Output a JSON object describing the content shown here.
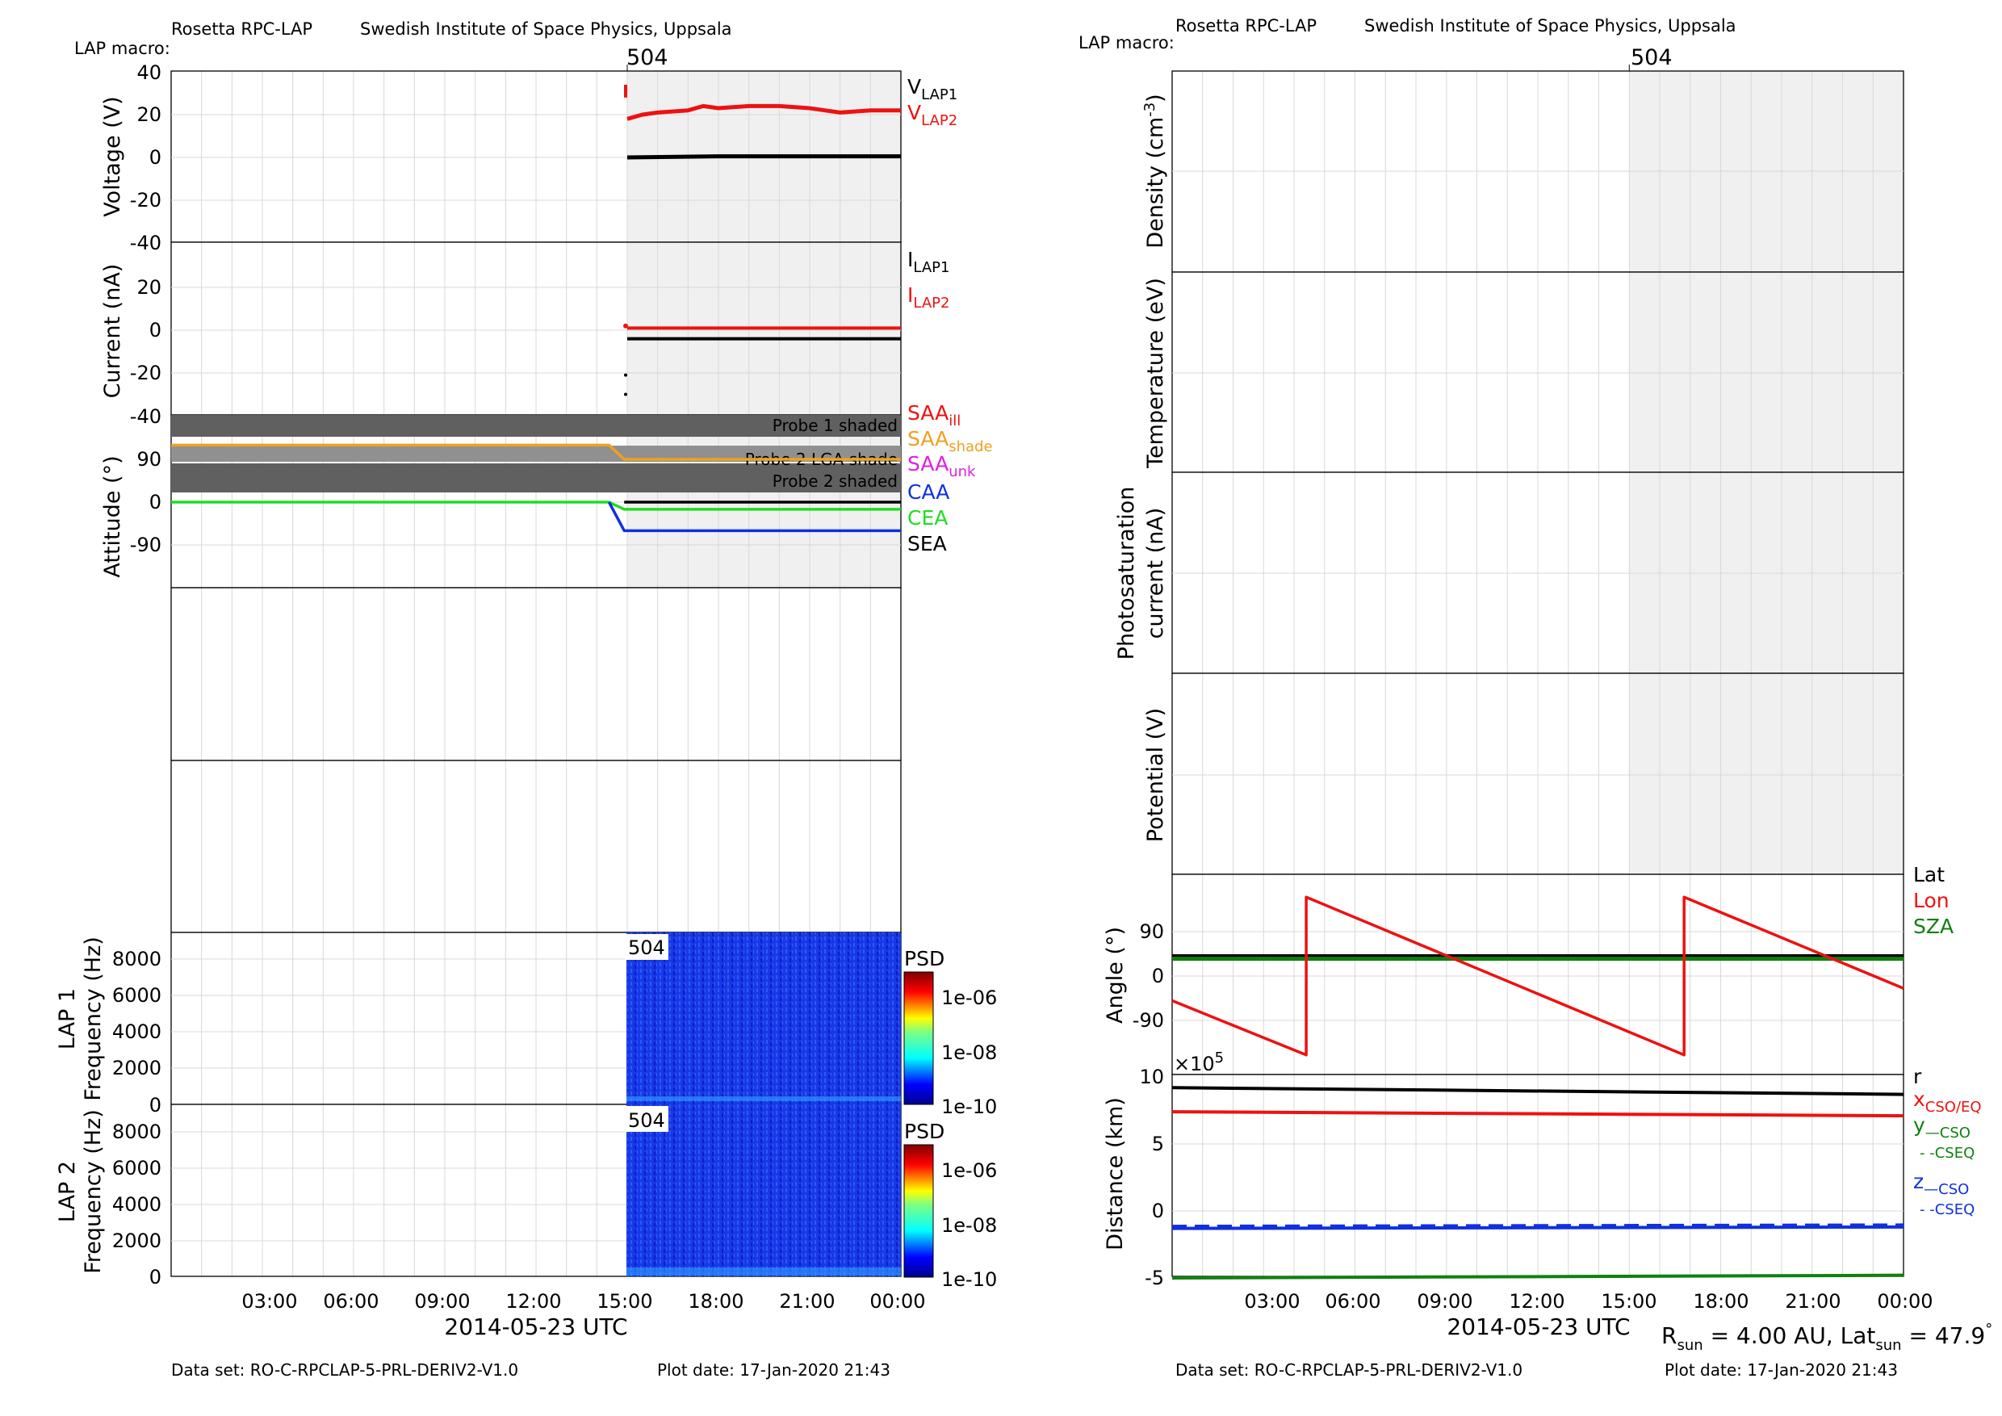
{
  "colors": {
    "red": "#ee1111",
    "black": "#000000",
    "orange": "#f0a020",
    "magenta": "#e020e0",
    "blue": "#1030e0",
    "green": "#20dd20",
    "darkgreen": "#108010",
    "macro_bg": "#f0f0f0",
    "shade": "#606060",
    "grid": "#d8d8d8"
  },
  "left": {
    "header_left": "Rosetta RPC-LAP",
    "header_right": "Swedish Institute of Space Physics, Uppsala",
    "macro_label": "LAP macro:",
    "macro_id": "504",
    "xlabel": "2014-05-23 UTC",
    "dataset": "Data set: RO-C-RPCLAP-5-PRL-DERIV2-V1.0",
    "plotdate": "Plot date: 17-Jan-2020 21:43",
    "x_ticks": [
      "03:00",
      "06:00",
      "09:00",
      "12:00",
      "15:00",
      "18:00",
      "21:00",
      "00:00"
    ],
    "psd_label": "PSD",
    "psd_ticks": [
      "1e-06",
      "1e-08",
      "1e-10"
    ],
    "panels": {
      "voltage": {
        "ylabel": "Voltage (V)",
        "yticks": [
          "40",
          "20",
          "0",
          "-20",
          "-40"
        ],
        "legend": [
          {
            "base": "V",
            "sub": "LAP1",
            "color": "black"
          },
          {
            "base": "V",
            "sub": "LAP2",
            "color": "red"
          }
        ]
      },
      "current": {
        "ylabel": "Current (nA)",
        "yticks": [
          "20",
          "0",
          "-20",
          "-40"
        ],
        "legend": [
          {
            "base": "I",
            "sub": "LAP1",
            "color": "black"
          },
          {
            "base": "I",
            "sub": "LAP2",
            "color": "red"
          }
        ]
      },
      "attitude": {
        "ylabel": "Attitude (°)",
        "yticks": [
          "90",
          "0",
          "-90"
        ],
        "shade_labels": [
          "Probe 1 shaded",
          "Probe 2 LGA shade",
          "Probe 2 shaded"
        ],
        "legend": [
          {
            "base": "SAA",
            "sub": "ill",
            "color": "red"
          },
          {
            "base": "SAA",
            "sub": "shade",
            "color": "orange"
          },
          {
            "base": "SAA",
            "sub": "unk",
            "color": "magenta"
          },
          {
            "base": "CAA",
            "sub": "",
            "color": "blue"
          },
          {
            "base": "CEA",
            "sub": "",
            "color": "green"
          },
          {
            "base": "SEA",
            "sub": "",
            "color": "black"
          }
        ]
      },
      "lap1": {
        "ylabel1": "LAP 1",
        "ylabel2": "Frequency (Hz)",
        "yticks": [
          "8000",
          "6000",
          "4000",
          "2000",
          "0"
        ]
      },
      "lap2": {
        "ylabel1": "LAP 2",
        "ylabel2": "Frequency (Hz)",
        "yticks": [
          "8000",
          "6000",
          "4000",
          "2000",
          "0"
        ]
      }
    }
  },
  "right": {
    "header_left": "Rosetta RPC-LAP",
    "header_right": "Swedish Institute of Space Physics, Uppsala",
    "macro_label": "LAP macro:",
    "macro_id": "504",
    "xlabel": "2014-05-23 UTC",
    "dataset": "Data set: RO-C-RPCLAP-5-PRL-DERIV2-V1.0",
    "plotdate": "Plot date: 17-Jan-2020 21:43",
    "x_ticks": [
      "03:00",
      "06:00",
      "09:00",
      "12:00",
      "15:00",
      "18:00",
      "21:00",
      "00:00"
    ],
    "rsun": {
      "r": "R",
      "r_sub": "sun",
      "r_val": " = 4.00 AU, Lat",
      "lat_sub": "sun",
      "lat_val": " = 47.9",
      "deg": "°"
    },
    "panels": {
      "density": {
        "ylabel": "Density (cm",
        "ylabel_sup": "-3",
        "ylabel_end": ")"
      },
      "temperature": {
        "ylabel": "Temperature (eV)"
      },
      "photo": {
        "ylabel1": "Photosaturation",
        "ylabel2": "current (nA)"
      },
      "potential": {
        "ylabel": "Potential (V)"
      },
      "angle": {
        "ylabel": "Angle (°)",
        "yticks": [
          "90",
          "0",
          "-90"
        ],
        "legend": [
          {
            "text": "Lat",
            "color": "black"
          },
          {
            "text": "Lon",
            "color": "red"
          },
          {
            "text": "SZA",
            "color": "darkgreen"
          }
        ]
      },
      "distance": {
        "ylabel": "Distance (km)",
        "yticks": [
          "10",
          "5",
          "0",
          "-5"
        ],
        "exponent": "×10",
        "exponent_sup": "5",
        "legend_r": "r",
        "legend_x": "x",
        "legend_x_sub": "CSO/EQ",
        "legend_y": "y",
        "legend_y_sub1": "—CSO",
        "legend_y_sub2": "- -CSEQ",
        "legend_z": "z",
        "legend_z_sub1": "—CSO",
        "legend_z_sub2": "- -CSEQ"
      }
    }
  },
  "chart_data": [
    {
      "type": "line",
      "title": "Voltage (V)",
      "x_unit": "hours since 2014-05-23 00:00 UTC",
      "ylim": [
        -40,
        40
      ],
      "xlim": [
        0,
        24
      ],
      "macro_start_hour": 15,
      "series": [
        {
          "name": "V LAP1",
          "color": "black",
          "x": [
            15,
            18,
            21,
            24
          ],
          "y": [
            0,
            0.5,
            0.5,
            0.5
          ]
        },
        {
          "name": "V LAP2",
          "color": "red",
          "x": [
            15,
            15.5,
            16,
            17,
            17.5,
            18,
            19,
            20,
            21,
            22,
            23,
            24
          ],
          "y": [
            18,
            20,
            21,
            22,
            24,
            23,
            24,
            24,
            23,
            21,
            22,
            22
          ]
        }
      ]
    },
    {
      "type": "line",
      "title": "Current (nA)",
      "ylim": [
        -40,
        25
      ],
      "xlim": [
        0,
        24
      ],
      "series": [
        {
          "name": "I LAP1",
          "color": "black",
          "x": [
            15,
            24
          ],
          "y": [
            -4,
            -4
          ]
        },
        {
          "name": "I LAP2",
          "color": "red",
          "x": [
            15,
            24
          ],
          "y": [
            1,
            1
          ]
        }
      ]
    },
    {
      "type": "line",
      "title": "Attitude (°)",
      "ylim": [
        -180,
        180
      ],
      "xlim": [
        0,
        24
      ],
      "series": [
        {
          "name": "SAA shade",
          "color": "orange",
          "x": [
            0,
            14.4,
            14.9,
            24
          ],
          "y": [
            120,
            120,
            90,
            90
          ]
        },
        {
          "name": "CEA",
          "color": "green",
          "x": [
            0,
            14.4,
            14.9,
            24
          ],
          "y": [
            0,
            0,
            -15,
            -15
          ]
        },
        {
          "name": "CAA",
          "color": "blue",
          "x": [
            14.4,
            14.9,
            24
          ],
          "y": [
            0,
            -60,
            -60
          ]
        },
        {
          "name": "SEA",
          "color": "black",
          "x": [
            14.9,
            24
          ],
          "y": [
            0,
            0
          ]
        }
      ]
    },
    {
      "type": "line",
      "title": "Angle (°)",
      "ylim": [
        -180,
        180
      ],
      "xlim": [
        0,
        24
      ],
      "series": [
        {
          "name": "Lat",
          "color": "black",
          "x": [
            0,
            24
          ],
          "y": [
            40,
            40
          ]
        },
        {
          "name": "SZA",
          "color": "darkgreen",
          "x": [
            0,
            24
          ],
          "y": [
            35,
            35
          ]
        },
        {
          "name": "Lon",
          "color": "red",
          "x": [
            0,
            4.4,
            4.4,
            16.8,
            16.8,
            24
          ],
          "y": [
            -50,
            -160,
            160,
            -160,
            160,
            -25
          ]
        }
      ]
    },
    {
      "type": "line",
      "title": "Distance (km)",
      "ylabel_exponent": "1e5",
      "ylim": [
        -5,
        10
      ],
      "xlim": [
        0,
        24
      ],
      "series": [
        {
          "name": "r",
          "color": "black",
          "x": [
            0,
            24
          ],
          "y": [
            9.2,
            8.7
          ]
        },
        {
          "name": "x CSO/EQ",
          "color": "red",
          "x": [
            0,
            24
          ],
          "y": [
            7.4,
            7.1
          ]
        },
        {
          "name": "z",
          "color": "blue",
          "x": [
            0,
            24
          ],
          "y": [
            -1.3,
            -1.2
          ]
        },
        {
          "name": "y",
          "color": "darkgreen",
          "x": [
            0,
            24
          ],
          "y": [
            -5.0,
            -4.8
          ]
        }
      ]
    }
  ]
}
